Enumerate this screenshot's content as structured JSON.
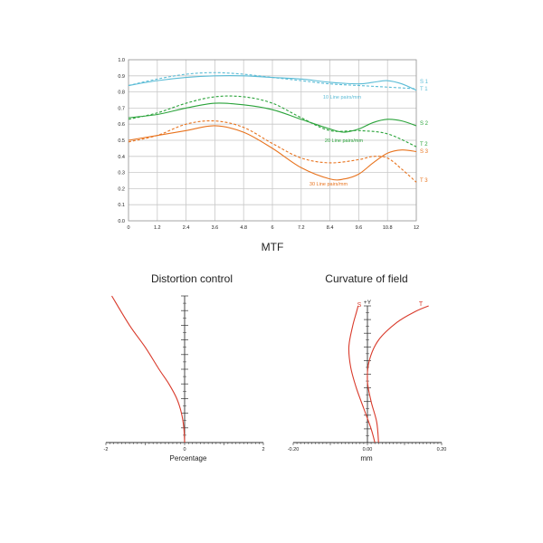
{
  "colors": {
    "series1": "#5bbcd6",
    "series2": "#2aa33a",
    "series3": "#e8731e",
    "curve_red": "#d93a2b",
    "grid": "#c8c8c8",
    "axis": "#333333"
  },
  "chart_data": [
    {
      "type": "line",
      "title": "MTF",
      "xlim": [
        0,
        12
      ],
      "ylim": [
        0,
        1.0
      ],
      "x_ticks": [
        "0",
        "1.2",
        "2.4",
        "3.6",
        "4.8",
        "6",
        "7.2",
        "8.4",
        "9.6",
        "10.8",
        "12"
      ],
      "y_ticks": [
        "0.0",
        "0.1",
        "0.2",
        "0.3",
        "0.4",
        "0.5",
        "0.6",
        "0.7",
        "0.8",
        "0.9",
        "1.0"
      ],
      "grid": true,
      "series": [
        {
          "name": "S 1",
          "color_key": "series1",
          "style": "solid",
          "x": [
            0,
            1.2,
            2.4,
            3.6,
            4.8,
            6,
            7.2,
            8.4,
            9.6,
            10.2,
            10.8,
            11.4,
            12
          ],
          "y": [
            0.84,
            0.87,
            0.89,
            0.9,
            0.9,
            0.89,
            0.88,
            0.86,
            0.85,
            0.86,
            0.87,
            0.85,
            0.81
          ]
        },
        {
          "name": "T 1",
          "color_key": "series1",
          "style": "dashed",
          "x": [
            0,
            1.2,
            2.4,
            3.6,
            4.8,
            6,
            7.2,
            8.4,
            9.6,
            10.8,
            12
          ],
          "y": [
            0.84,
            0.88,
            0.91,
            0.92,
            0.91,
            0.89,
            0.87,
            0.85,
            0.84,
            0.83,
            0.82
          ]
        },
        {
          "name": "S 2",
          "color_key": "series2",
          "style": "solid",
          "x": [
            0,
            1.2,
            2.4,
            3.6,
            4.8,
            6,
            7.2,
            8.4,
            9.0,
            9.6,
            10.2,
            10.8,
            11.4,
            12
          ],
          "y": [
            0.64,
            0.66,
            0.7,
            0.73,
            0.72,
            0.69,
            0.63,
            0.57,
            0.55,
            0.57,
            0.61,
            0.63,
            0.62,
            0.59
          ]
        },
        {
          "name": "T 2",
          "color_key": "series2",
          "style": "dashed",
          "x": [
            0,
            1.2,
            2.4,
            3.6,
            4.8,
            6,
            7.2,
            8.4,
            9.6,
            10.8,
            12
          ],
          "y": [
            0.63,
            0.67,
            0.73,
            0.77,
            0.77,
            0.73,
            0.64,
            0.56,
            0.56,
            0.54,
            0.46
          ]
        },
        {
          "name": "S 3",
          "color_key": "series3",
          "style": "solid",
          "x": [
            0,
            1.2,
            2.4,
            3.6,
            4.8,
            6,
            7.2,
            8.4,
            9.0,
            9.6,
            10.2,
            10.8,
            11.4,
            12
          ],
          "y": [
            0.5,
            0.53,
            0.56,
            0.59,
            0.55,
            0.45,
            0.33,
            0.26,
            0.26,
            0.29,
            0.36,
            0.42,
            0.44,
            0.43
          ]
        },
        {
          "name": "T 3",
          "color_key": "series3",
          "style": "dashed",
          "x": [
            0,
            1.2,
            2.4,
            3.6,
            4.8,
            6,
            7.2,
            8.4,
            9.6,
            10.2,
            10.8,
            11.4,
            12
          ],
          "y": [
            0.49,
            0.53,
            0.6,
            0.62,
            0.58,
            0.48,
            0.39,
            0.36,
            0.38,
            0.4,
            0.39,
            0.32,
            0.24
          ]
        }
      ],
      "annotations": [
        {
          "text": "10 Line pairs/mm",
          "color_key": "series1"
        },
        {
          "text": "20 Line pairs/mm",
          "color_key": "series2"
        },
        {
          "text": "30 Line pairs/mm",
          "color_key": "series3"
        }
      ]
    },
    {
      "type": "line",
      "title": "Distortion control",
      "xlabel": "Percentage",
      "xlim": [
        -2,
        2
      ],
      "x_tick_labels": {
        "left": "-2",
        "center": "0",
        "right": "2"
      },
      "series": [
        {
          "name": "",
          "color_key": "curve_red",
          "x": [
            0,
            -0.02,
            -0.08,
            -0.2,
            -0.4,
            -0.65,
            -1.0,
            -1.4,
            -1.85
          ],
          "y": [
            0.0,
            0.1,
            0.2,
            0.3,
            0.4,
            0.5,
            0.65,
            0.8,
            1.0
          ]
        }
      ]
    },
    {
      "type": "line",
      "title": "Curvature of field",
      "xlabel": "mm",
      "ylabel": "+Y",
      "xlim": [
        -0.2,
        0.2
      ],
      "x_tick_labels": {
        "left": "-0.20",
        "center": "0.00",
        "right": "0.20"
      },
      "series": [
        {
          "name": "S",
          "color_key": "curve_red",
          "x": [
            0.02,
            0.01,
            -0.01,
            -0.03,
            -0.045,
            -0.05,
            -0.04,
            -0.03,
            -0.025
          ],
          "y": [
            0.0,
            0.1,
            0.25,
            0.4,
            0.55,
            0.7,
            0.85,
            0.95,
            1.0
          ]
        },
        {
          "name": "T",
          "color_key": "curve_red",
          "x": [
            0.03,
            0.025,
            0.01,
            0.0,
            0.005,
            0.03,
            0.08,
            0.13,
            0.165
          ],
          "y": [
            0.0,
            0.15,
            0.3,
            0.45,
            0.6,
            0.75,
            0.88,
            0.96,
            1.0
          ]
        }
      ]
    }
  ]
}
